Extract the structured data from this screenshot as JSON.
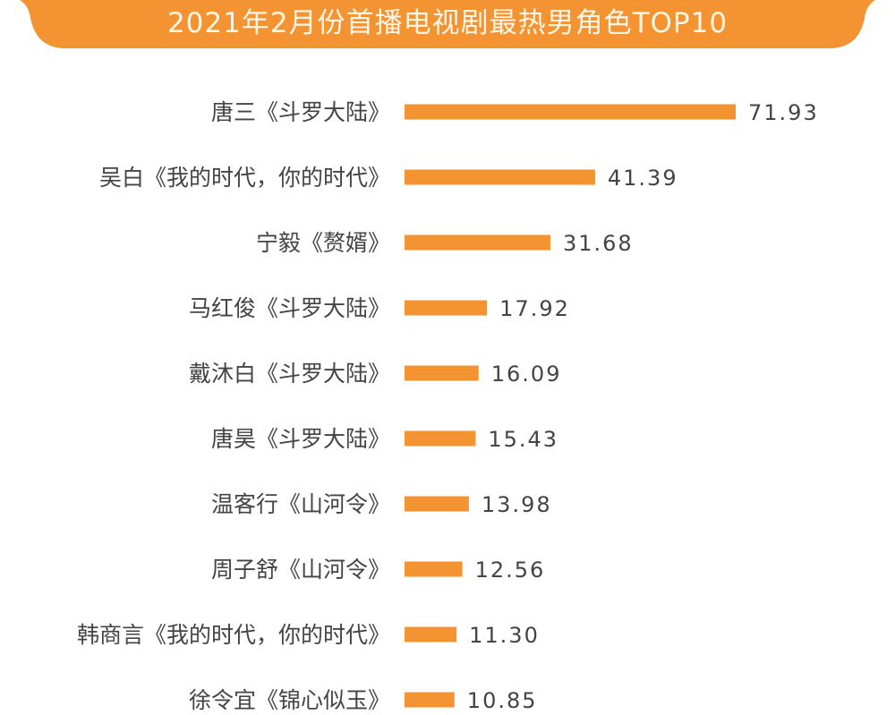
{
  "chart_data": {
    "type": "bar",
    "orientation": "horizontal",
    "title": "2021年2月份首播电视剧最热男角色TOP10",
    "categories": [
      "唐三《斗罗大陆》",
      "吴白《我的时代，你的时代》",
      "宁毅《赘婿》",
      "马红俊《斗罗大陆》",
      "戴沐白《斗罗大陆》",
      "唐昊《斗罗大陆》",
      "温客行《山河令》",
      "周子舒《山河令》",
      "韩商言《我的时代，你的时代》",
      "徐令宜《锦心似玉》"
    ],
    "values": [
      71.93,
      41.39,
      31.68,
      17.92,
      16.09,
      15.43,
      13.98,
      12.56,
      11.3,
      10.85
    ],
    "value_labels": [
      "71.93",
      "41.39",
      "31.68",
      "17.92",
      "16.09",
      "15.43",
      "13.98",
      "12.56",
      "11.30",
      "10.85"
    ],
    "xlim": [
      0,
      72
    ],
    "grid": false,
    "axes_visible": false,
    "colors": {
      "bar": "#f39332",
      "banner": "#f39332",
      "title_text": "#fff6e6",
      "label_text": "#444444"
    }
  }
}
